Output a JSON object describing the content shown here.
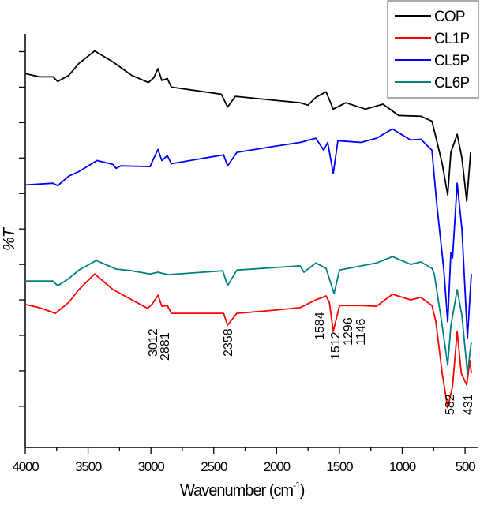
{
  "chart_data": {
    "type": "line",
    "title": "",
    "xlabel": "Wavenumber (cm",
    "xlabel_sup": "-1",
    "xlabel_close": ")",
    "ylabel": "%T",
    "xlim": [
      4000,
      400
    ],
    "ylim": [
      -1.6,
      115
    ],
    "x_reversed": true,
    "x_ticks": [
      4000,
      3500,
      3000,
      2500,
      2000,
      1500,
      1000,
      500
    ],
    "x_tick_labels": [
      "4000",
      "3500",
      "3000",
      "2500",
      "2000",
      "1500",
      "1000",
      "500"
    ],
    "y_tick_labels_shown": false,
    "grid": false,
    "legend_position": "top-right",
    "series": [
      {
        "name": "COP",
        "color": "#000000",
        "x": [
          4000,
          3887,
          3780,
          3742,
          3654,
          3573,
          3447,
          3302,
          3152,
          3020,
          2976,
          2944,
          2913,
          2869,
          2838,
          2440,
          2390,
          2328,
          2021,
          1813,
          1750,
          1688,
          1606,
          1549,
          1449,
          1292,
          1153,
          1028,
          852,
          764,
          733,
          682,
          638,
          613,
          563,
          525,
          487,
          456
        ],
        "y": [
          103.8,
          102.9,
          102.9,
          101.6,
          103.3,
          106.7,
          110.2,
          107.1,
          103.3,
          101.3,
          102.7,
          105.2,
          101.9,
          102.4,
          100,
          98,
          94.4,
          97.4,
          96.3,
          95.6,
          94.9,
          97.1,
          98.7,
          93.8,
          95.6,
          93.8,
          95.2,
          92,
          91.8,
          90.4,
          86,
          78.4,
          69.6,
          81.6,
          86.7,
          80,
          67.8,
          81.6
        ]
      },
      {
        "name": "CL1P",
        "color": "#ff0000",
        "x": [
          4000,
          3887,
          3760,
          3654,
          3573,
          3447,
          3302,
          3152,
          3026,
          2988,
          2944,
          2913,
          2869,
          2838,
          2422,
          2390,
          2316,
          2021,
          1813,
          1688,
          1606,
          1580,
          1549,
          1499,
          1329,
          1204,
          1078,
          934,
          852,
          764,
          733,
          682,
          638,
          600,
          563,
          530,
          487,
          462,
          450
        ],
        "y": [
          38.7,
          37.8,
          36.2,
          39.3,
          42.9,
          47.3,
          42.9,
          40,
          37.6,
          38.9,
          41.3,
          38.2,
          38.4,
          36.2,
          36.2,
          32.9,
          36.2,
          37.1,
          37.8,
          40,
          41.1,
          39.3,
          31.1,
          38.4,
          38.4,
          38.2,
          41.6,
          40,
          40.7,
          38.4,
          34,
          19.3,
          9.6,
          15.6,
          31.1,
          19.3,
          16,
          22.9,
          19.3
        ]
      },
      {
        "name": "CL5P",
        "color": "#0000ff",
        "x": [
          4000,
          3780,
          3742,
          3654,
          3573,
          3428,
          3302,
          3277,
          3240,
          3007,
          2976,
          2944,
          2913,
          2869,
          2838,
          2422,
          2390,
          2316,
          2021,
          1813,
          1688,
          1625,
          1593,
          1549,
          1512,
          1329,
          1204,
          1078,
          934,
          852,
          764,
          726,
          670,
          638,
          613,
          600,
          563,
          525,
          481,
          450
        ],
        "y": [
          72.4,
          72.9,
          72.2,
          74.9,
          76.2,
          79.3,
          78.2,
          77.1,
          77.8,
          77.6,
          80,
          82.4,
          79.3,
          80.7,
          78.4,
          80.9,
          77.8,
          81.6,
          83.3,
          84.4,
          85.6,
          82.2,
          84.4,
          75.6,
          84.9,
          84.4,
          85.6,
          88.2,
          85.1,
          85.3,
          82.2,
          67.3,
          48.9,
          33.8,
          53.3,
          51.8,
          72.9,
          60,
          29.3,
          47.3
        ]
      },
      {
        "name": "CL6P",
        "color": "#008080",
        "x": [
          4000,
          3780,
          3742,
          3654,
          3573,
          3435,
          3277,
          3152,
          3007,
          2944,
          2863,
          2429,
          2390,
          2316,
          1813,
          1782,
          1688,
          1606,
          1543,
          1499,
          1204,
          1078,
          934,
          852,
          764,
          745,
          682,
          638,
          613,
          563,
          525,
          481,
          450
        ],
        "y": [
          45.3,
          45.3,
          44,
          46,
          48.4,
          51.1,
          48.7,
          48.2,
          47.3,
          47.8,
          47.1,
          48.2,
          44,
          48.4,
          49.6,
          47.8,
          50.4,
          48.9,
          41.8,
          48.4,
          50.4,
          52.2,
          50,
          50.7,
          48.9,
          47.3,
          32.7,
          21.6,
          32.7,
          42.9,
          35.6,
          19.3,
          28.2
        ]
      }
    ],
    "annotations": [
      "3012",
      "2881",
      "2358",
      "1584",
      "1512",
      "1296",
      "1146",
      "582",
      "431"
    ]
  }
}
